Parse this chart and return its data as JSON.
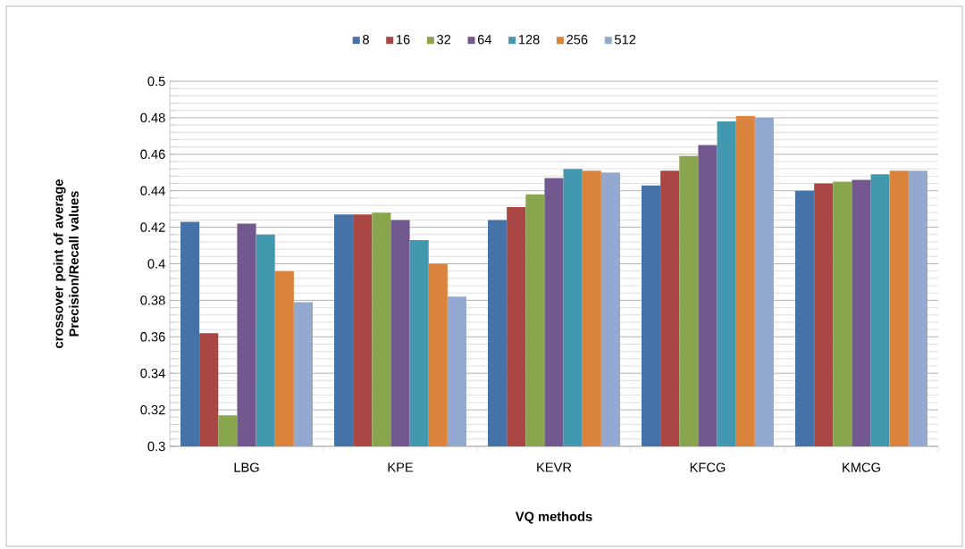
{
  "chart_data": {
    "type": "bar",
    "xlabel": "VQ methods",
    "ylabel": "crossover point of average  Precision/Recall values",
    "categories": [
      "LBG",
      "KPE",
      "KEVR",
      "KFCG",
      "KMCG"
    ],
    "series": [
      {
        "name": "8",
        "color": "#4572a7",
        "values": [
          0.423,
          0.427,
          0.424,
          0.443,
          0.44
        ]
      },
      {
        "name": "16",
        "color": "#aa4643",
        "values": [
          0.362,
          0.427,
          0.431,
          0.451,
          0.444
        ]
      },
      {
        "name": "32",
        "color": "#89a54e",
        "values": [
          0.317,
          0.428,
          0.438,
          0.459,
          0.445
        ]
      },
      {
        "name": "64",
        "color": "#71588f",
        "values": [
          0.422,
          0.424,
          0.447,
          0.465,
          0.446
        ]
      },
      {
        "name": "128",
        "color": "#4198af",
        "values": [
          0.416,
          0.413,
          0.452,
          0.478,
          0.449
        ]
      },
      {
        "name": "256",
        "color": "#db843d",
        "values": [
          0.396,
          0.4,
          0.451,
          0.481,
          0.451
        ]
      },
      {
        "name": "512",
        "color": "#93a9cf",
        "values": [
          0.379,
          0.382,
          0.45,
          0.48,
          0.451
        ]
      }
    ],
    "ylim": [
      0.3,
      0.5
    ],
    "yticks": [
      0.3,
      0.32,
      0.34,
      0.36,
      0.38,
      0.4,
      0.42,
      0.44,
      0.46,
      0.48,
      0.5
    ],
    "grid": "y",
    "legend": "top"
  }
}
